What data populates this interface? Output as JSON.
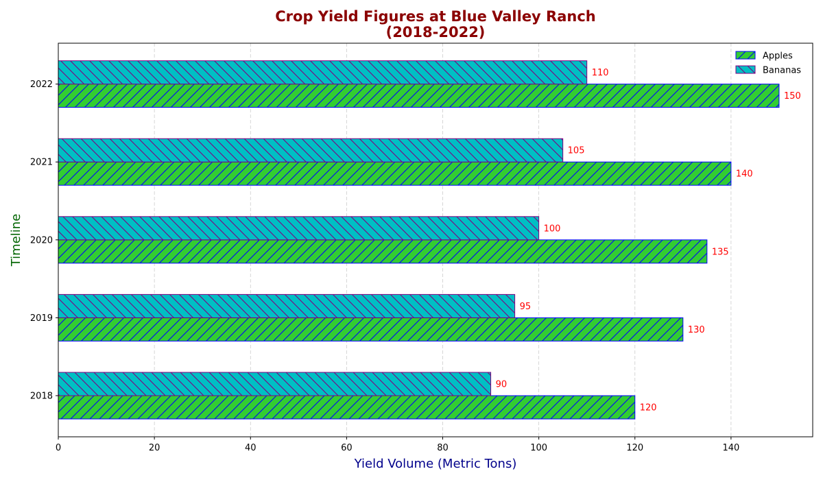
{
  "chart_data": {
    "type": "bar",
    "orientation": "horizontal",
    "title_lines": [
      "Crop Yield Figures at Blue Valley Ranch",
      "(2018-2022)"
    ],
    "xlabel": "Yield Volume (Metric Tons)",
    "ylabel": "Timeline",
    "categories": [
      "2018",
      "2019",
      "2020",
      "2021",
      "2022"
    ],
    "series": [
      {
        "name": "Apples",
        "values": [
          120,
          130,
          135,
          140,
          150
        ],
        "color": "#32cd32",
        "edge_color": "#0000ff",
        "hatch": "forward-slash"
      },
      {
        "name": "Bananas",
        "values": [
          90,
          95,
          100,
          105,
          110
        ],
        "color": "#00bfc4",
        "edge_color": "#800080",
        "hatch": "back-slash"
      }
    ],
    "xlim": [
      0,
      157
    ],
    "xticks": [
      0,
      20,
      40,
      60,
      80,
      100,
      120,
      140
    ],
    "grid": "vertical dashed",
    "legend_position": "top-right",
    "data_label_color": "#ff0000",
    "title_color": "#8b0000",
    "xlabel_color": "#00008b",
    "ylabel_color": "#006400"
  }
}
